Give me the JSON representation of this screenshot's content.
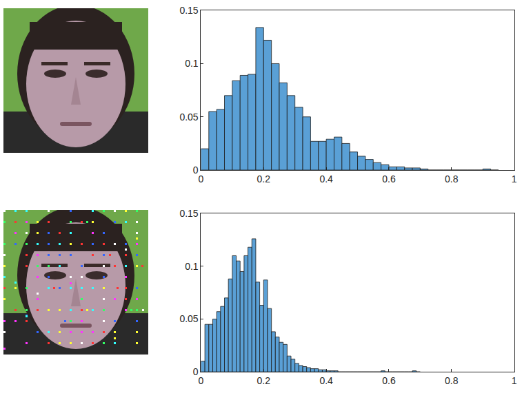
{
  "chart_data": [
    {
      "type": "histogram",
      "bins": [
        0,
        0.025,
        0.05,
        0.075,
        0.1,
        0.125,
        0.15,
        0.175,
        0.2,
        0.225,
        0.25,
        0.275,
        0.3,
        0.325,
        0.35,
        0.375,
        0.4,
        0.425,
        0.45,
        0.475,
        0.5,
        0.525,
        0.55,
        0.575,
        0.6,
        0.625,
        0.65,
        0.675,
        0.7,
        0.725,
        0.75,
        0.775,
        0.8,
        0.825,
        0.85,
        0.875,
        0.9,
        0.925,
        0.95
      ],
      "values": [
        0.02,
        0.055,
        0.057,
        0.07,
        0.084,
        0.089,
        0.09,
        0.134,
        0.122,
        0.1,
        0.082,
        0.07,
        0.059,
        0.05,
        0.027,
        0.027,
        0.029,
        0.031,
        0.025,
        0.017,
        0.013,
        0.01,
        0.007,
        0.005,
        0.003,
        0.003,
        0.002,
        0.002,
        0.001,
        0,
        0,
        0,
        0,
        0,
        0,
        0,
        0.001,
        0
      ],
      "color": "#5aa0d6",
      "xlim": [
        0,
        1
      ],
      "xticks": [
        0,
        0.2,
        0.4,
        0.6,
        0.8,
        1
      ],
      "ylim": [
        0,
        0.15
      ],
      "yticks": [
        0,
        0.05,
        0.1,
        0.15
      ],
      "grid": false
    },
    {
      "type": "histogram",
      "bins": [
        0,
        0.0125,
        0.025,
        0.0375,
        0.05,
        0.0625,
        0.075,
        0.0875,
        0.1,
        0.1125,
        0.125,
        0.1375,
        0.15,
        0.1625,
        0.175,
        0.1875,
        0.2,
        0.2125,
        0.225,
        0.2375,
        0.25,
        0.2625,
        0.275,
        0.2875,
        0.3,
        0.3125,
        0.325,
        0.3375,
        0.35,
        0.3625,
        0.375,
        0.3875,
        0.4,
        0.4125,
        0.425,
        0.4375,
        0.45,
        0.4625,
        0.475,
        0.4875,
        0.5,
        0.5125,
        0.525,
        0.5375,
        0.55,
        0.5625,
        0.575,
        0.5875,
        0.6,
        0.6125,
        0.625,
        0.6375,
        0.65,
        0.6625,
        0.675,
        0.6875,
        0.7
      ],
      "values": [
        0.01,
        0.045,
        0.045,
        0.05,
        0.057,
        0.062,
        0.07,
        0.088,
        0.11,
        0.105,
        0.095,
        0.11,
        0.118,
        0.126,
        0.085,
        0.063,
        0.087,
        0.06,
        0.038,
        0.033,
        0.028,
        0.026,
        0.015,
        0.012,
        0.008,
        0.006,
        0.005,
        0.004,
        0.003,
        0.003,
        0.002,
        0.002,
        0.001,
        0.001,
        0.001,
        0,
        0,
        0,
        0,
        0,
        0,
        0,
        0,
        0,
        0,
        0,
        0.001,
        0,
        0,
        0,
        0,
        0,
        0,
        0,
        0.001,
        0
      ],
      "color": "#5aa0d6",
      "xlim": [
        0,
        1
      ],
      "xticks": [
        0,
        0.2,
        0.4,
        0.6,
        0.8,
        1
      ],
      "ylim": [
        0,
        0.15
      ],
      "yticks": [
        0,
        0.05,
        0.1,
        0.15
      ],
      "grid": false
    }
  ]
}
